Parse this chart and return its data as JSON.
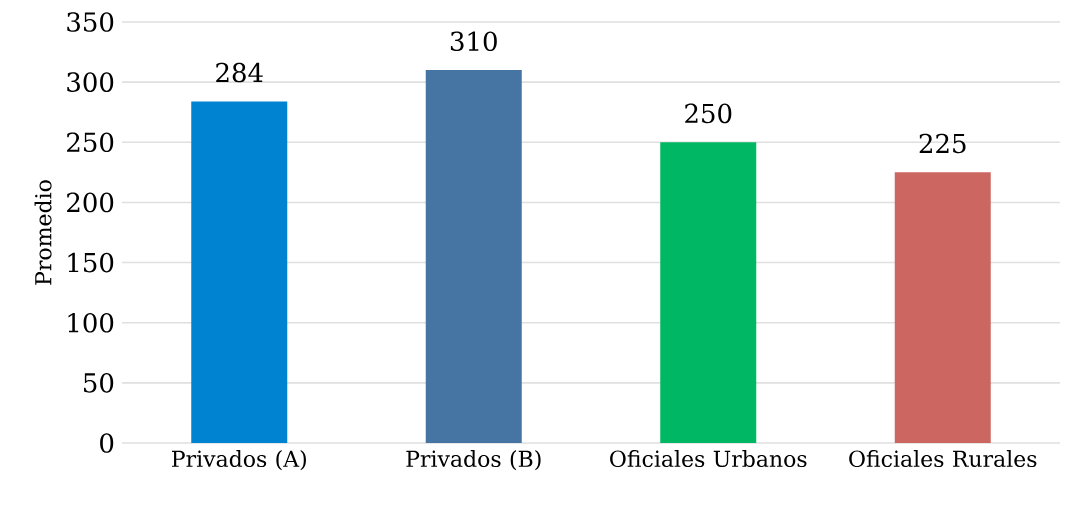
{
  "chart_data": {
    "type": "bar",
    "ylabel": "Promedio",
    "categories": [
      "Privados (A)",
      "Privados (B)",
      "Oficiales Urbanos",
      "Oficiales Rurales"
    ],
    "values": [
      284,
      310,
      250,
      225
    ],
    "colors": [
      "#0084d1",
      "#4674a3",
      "#00b863",
      "#cc6660"
    ],
    "ylim": [
      0,
      350
    ],
    "yticks": [
      0,
      50,
      100,
      150,
      200,
      250,
      300,
      350
    ],
    "grid": "y",
    "data_labels": true
  }
}
